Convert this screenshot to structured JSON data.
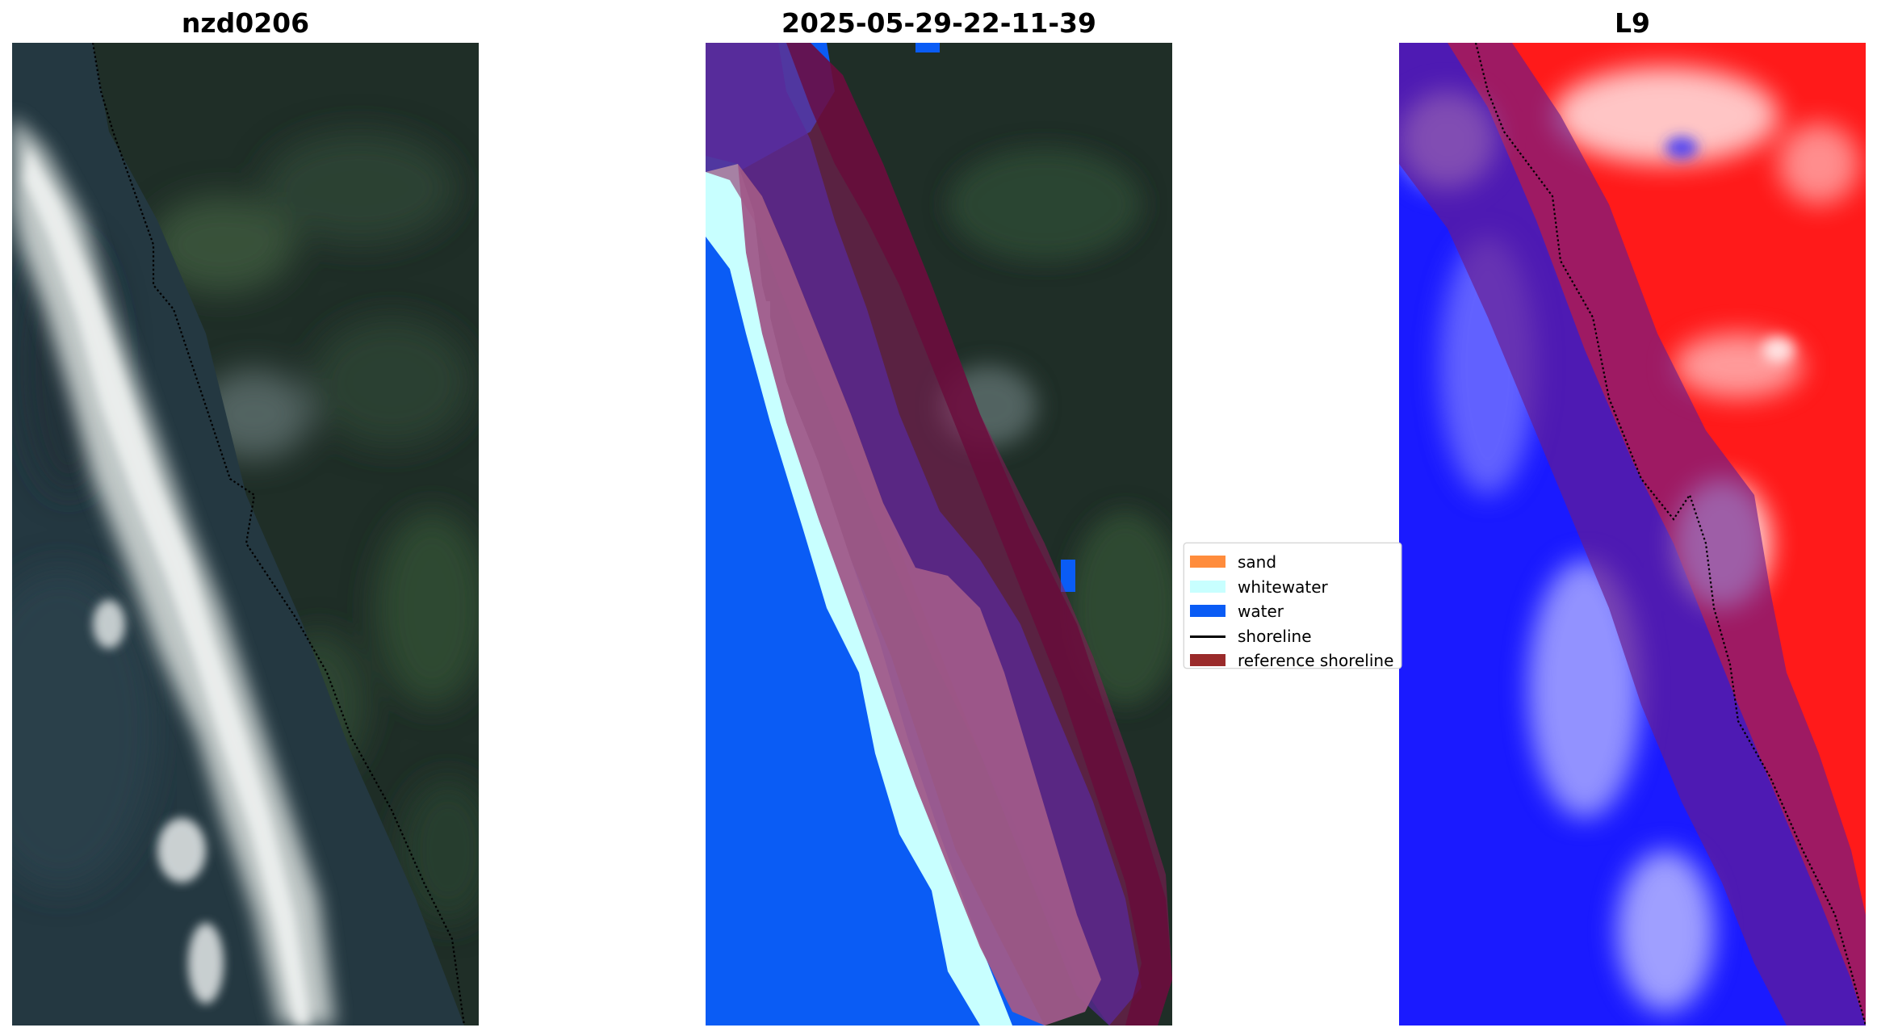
{
  "panels": [
    {
      "title": "nzd0206"
    },
    {
      "title": "2025-05-29-22-11-39"
    },
    {
      "title": "L9"
    }
  ],
  "legend": {
    "items": [
      {
        "label": "sand",
        "color": "#ff8c3c",
        "kind": "patch"
      },
      {
        "label": "whitewater",
        "color": "#c8ffff",
        "kind": "patch"
      },
      {
        "label": "water",
        "color": "#0a5cf5",
        "kind": "patch"
      },
      {
        "label": "shoreline",
        "color": "#000000",
        "kind": "line"
      },
      {
        "label": "reference shoreline",
        "color": "#9a2a2a",
        "kind": "patch"
      }
    ]
  }
}
